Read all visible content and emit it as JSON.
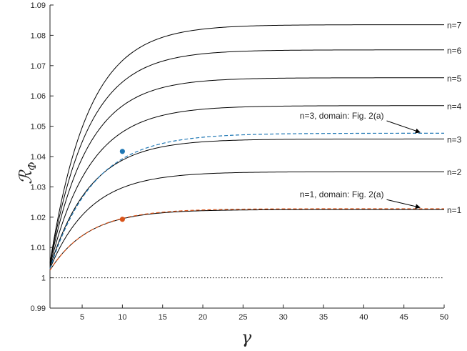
{
  "chart_data": {
    "type": "line",
    "title": "",
    "xlabel": "γ",
    "ylabel": "ℛ",
    "ylabel_subscript": "Φ",
    "xlim": [
      1,
      50
    ],
    "ylim": [
      0.99,
      1.09
    ],
    "xticks": [
      5,
      10,
      15,
      20,
      25,
      30,
      35,
      40,
      45,
      50
    ],
    "xtick_labels": [
      "5",
      "10",
      "15",
      "20",
      "25",
      "30",
      "35",
      "40",
      "45",
      "50"
    ],
    "yticks": [
      0.99,
      1.0,
      1.01,
      1.02,
      1.03,
      1.04,
      1.05,
      1.06,
      1.07,
      1.08,
      1.09
    ],
    "ytick_labels": [
      "0.99",
      "1",
      "1.01",
      "1.02",
      "1.03",
      "1.04",
      "1.05",
      "1.06",
      "1.07",
      "1.08",
      "1.09"
    ],
    "grid": false,
    "legend": "none",
    "colors": {
      "solid": "#000000",
      "dashed_blue": "#1f77b4",
      "dashed_orange": "#d95319",
      "marker_blue": "#1f77b4",
      "marker_orange": "#d95319"
    },
    "series": [
      {
        "label": "n=1",
        "style": "solid",
        "start": 1.0025,
        "asymptote": 1.0225,
        "k": 0.21
      },
      {
        "label": "n=2",
        "style": "solid",
        "start": 1.003,
        "asymptote": 1.035,
        "k": 0.2
      },
      {
        "label": "n=3",
        "style": "solid",
        "start": 1.0035,
        "asymptote": 1.0458,
        "k": 0.2
      },
      {
        "label": "n=4",
        "style": "solid",
        "start": 1.004,
        "asymptote": 1.0568,
        "k": 0.2
      },
      {
        "label": "n=5",
        "style": "solid",
        "start": 1.0045,
        "asymptote": 1.066,
        "k": 0.21
      },
      {
        "label": "n=6",
        "style": "solid",
        "start": 1.0048,
        "asymptote": 1.0752,
        "k": 0.21
      },
      {
        "label": "n=7",
        "style": "solid",
        "start": 1.005,
        "asymptote": 1.0835,
        "k": 0.21
      }
    ],
    "dashed_series": [
      {
        "label": "n=3, domain: Fig. 2(a)",
        "color": "#1f77b4",
        "start": 1.003,
        "asymptote": 1.0477,
        "k": 0.185
      },
      {
        "label": "n=1, domain: Fig. 2(a)",
        "color": "#d95319",
        "start": 1.0025,
        "asymptote": 1.0228,
        "k": 0.205
      }
    ],
    "markers": [
      {
        "x": 10,
        "y": 1.0417,
        "color": "#1f77b4"
      },
      {
        "x": 10,
        "y": 1.0193,
        "color": "#d95319"
      }
    ],
    "reference_line": {
      "y": 1.0,
      "style": "dotted"
    },
    "annotations": [
      {
        "text": "n=3, domain: Fig. 2(a)",
        "x": 42.5,
        "y": 1.0525,
        "arrow_to": [
          47.0,
          1.048
        ]
      },
      {
        "text": "n=1, domain: Fig. 2(a)",
        "x": 42.5,
        "y": 1.0265,
        "arrow_to": [
          47.0,
          1.0232
        ]
      }
    ]
  }
}
